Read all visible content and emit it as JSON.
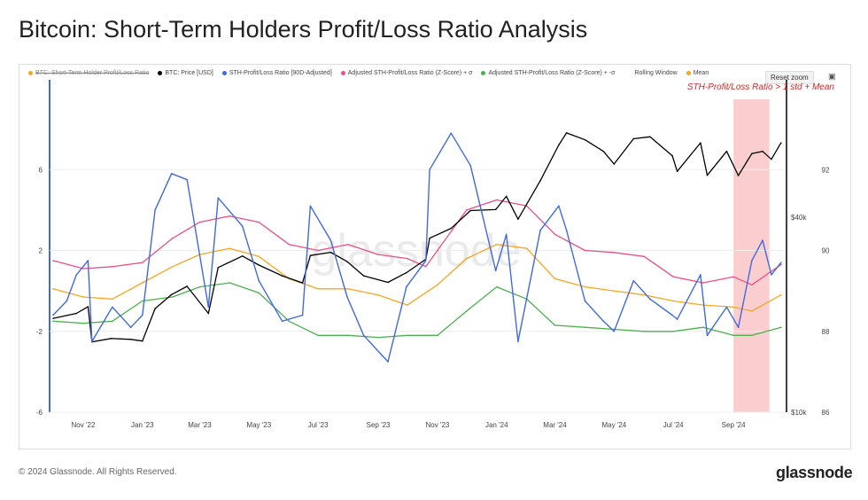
{
  "title": "Bitcoin: Short-Term Holders Profit/Loss Ratio Analysis",
  "footer": "© 2024 Glassnode. All Rights Reserved.",
  "brand": "glassnode",
  "watermark": "glassnode",
  "toolbar": {
    "reset_zoom": "Reset zoom",
    "camera_icon": "camera-icon"
  },
  "legend": [
    {
      "label": "BTC: Short-Term Holder Profit/Loss Ratio",
      "color": "#f5a623",
      "hidden": true
    },
    {
      "label": "BTC: Price [USD]",
      "color": "#000000",
      "hidden": false
    },
    {
      "label": "STH-Profit/Loss Ratio [90D-Adjusted]",
      "color": "#4169e1",
      "hidden": false
    },
    {
      "label": "Adjusted STH-Profit/Loss Ratio (Z-Score) + σ",
      "color": "#e8508a",
      "hidden": false
    },
    {
      "label": "Adjusted STH-Profit/Loss Ratio (Z-Score) + -σ",
      "color": "#4caf50",
      "hidden": false
    },
    {
      "label": "Rolling Window",
      "color": "",
      "hidden": false
    },
    {
      "label": "Mean",
      "color": "#f5a623",
      "hidden": false
    }
  ],
  "chart_data": {
    "type": "line",
    "annotation": "STH-Profit/Loss Ratio > 1 std + Mean",
    "x_tick_labels": [
      "Nov '22",
      "Jan '23",
      "Mar '23",
      "May '23",
      "Jul '23",
      "Sep '23",
      "Nov '23",
      "Jan '24",
      "Mar '24",
      "May '24",
      "Jul '24",
      "Sep '24"
    ],
    "x_range": [
      "2022-10-01",
      "2024-10-22"
    ],
    "y_left": {
      "ticks": [
        "-6",
        "-2",
        "2",
        "6"
      ],
      "range": [
        -6,
        10
      ]
    },
    "y_right_price": {
      "ticks": [
        "$10k",
        "$40k"
      ],
      "scale": "log",
      "range": [
        10000,
        100000
      ]
    },
    "y_right_ratio": {
      "ticks": [
        "86",
        "88",
        "90",
        "92"
      ],
      "range": [
        86,
        94
      ]
    },
    "highlight_region": {
      "from": "2024-09-01",
      "to": "2024-10-08",
      "color": "#f9c6c6"
    },
    "series": [
      {
        "name": "BTC: Price [USD]",
        "color": "#000000",
        "axis": "price",
        "points": [
          [
            "2022-10-01",
            19500
          ],
          [
            "2022-10-25",
            20200
          ],
          [
            "2022-11-06",
            21200
          ],
          [
            "2022-11-10",
            16500
          ],
          [
            "2022-11-30",
            16900
          ],
          [
            "2022-12-20",
            16800
          ],
          [
            "2023-01-01",
            16600
          ],
          [
            "2023-01-14",
            20900
          ],
          [
            "2023-01-31",
            23100
          ],
          [
            "2023-02-16",
            24500
          ],
          [
            "2023-03-10",
            20200
          ],
          [
            "2023-03-20",
            28000
          ],
          [
            "2023-04-14",
            30400
          ],
          [
            "2023-05-01",
            28500
          ],
          [
            "2023-05-25",
            26400
          ],
          [
            "2023-06-15",
            25100
          ],
          [
            "2023-06-23",
            30500
          ],
          [
            "2023-07-14",
            31200
          ],
          [
            "2023-07-31",
            29200
          ],
          [
            "2023-08-17",
            26400
          ],
          [
            "2023-09-11",
            25200
          ],
          [
            "2023-09-30",
            27000
          ],
          [
            "2023-10-20",
            29700
          ],
          [
            "2023-10-24",
            34500
          ],
          [
            "2023-11-15",
            37000
          ],
          [
            "2023-12-05",
            42000
          ],
          [
            "2023-12-31",
            42300
          ],
          [
            "2024-01-11",
            46500
          ],
          [
            "2024-01-23",
            39500
          ],
          [
            "2024-02-15",
            52000
          ],
          [
            "2024-03-05",
            67000
          ],
          [
            "2024-03-13",
            73000
          ],
          [
            "2024-04-01",
            69500
          ],
          [
            "2024-04-20",
            64000
          ],
          [
            "2024-05-01",
            58500
          ],
          [
            "2024-05-21",
            70000
          ],
          [
            "2024-06-07",
            71000
          ],
          [
            "2024-06-30",
            62000
          ],
          [
            "2024-07-05",
            55500
          ],
          [
            "2024-07-29",
            68000
          ],
          [
            "2024-08-05",
            54000
          ],
          [
            "2024-08-25",
            64000
          ],
          [
            "2024-09-06",
            53900
          ],
          [
            "2024-09-20",
            63000
          ],
          [
            "2024-10-01",
            64000
          ],
          [
            "2024-10-10",
            60500
          ],
          [
            "2024-10-20",
            68000
          ]
        ]
      },
      {
        "name": "STH-Profit/Loss Ratio [90D-Adjusted]",
        "color": "#4169e1",
        "axis": "left",
        "points": [
          [
            "2022-10-01",
            -1.2
          ],
          [
            "2022-10-15",
            -0.5
          ],
          [
            "2022-10-25",
            0.8
          ],
          [
            "2022-11-06",
            1.5
          ],
          [
            "2022-11-10",
            -2.5
          ],
          [
            "2022-12-01",
            -0.8
          ],
          [
            "2022-12-20",
            -1.8
          ],
          [
            "2023-01-01",
            -1.2
          ],
          [
            "2023-01-14",
            4.0
          ],
          [
            "2023-01-31",
            5.8
          ],
          [
            "2023-02-16",
            5.5
          ],
          [
            "2023-03-10",
            -0.8
          ],
          [
            "2023-03-20",
            4.6
          ],
          [
            "2023-04-14",
            3.2
          ],
          [
            "2023-05-01",
            0.5
          ],
          [
            "2023-05-25",
            -1.5
          ],
          [
            "2023-06-15",
            -1.2
          ],
          [
            "2023-06-23",
            4.2
          ],
          [
            "2023-07-14",
            2.5
          ],
          [
            "2023-07-31",
            -0.3
          ],
          [
            "2023-08-17",
            -2.2
          ],
          [
            "2023-09-11",
            -3.5
          ],
          [
            "2023-09-30",
            0.2
          ],
          [
            "2023-10-20",
            1.5
          ],
          [
            "2023-10-24",
            6.0
          ],
          [
            "2023-11-15",
            7.8
          ],
          [
            "2023-12-05",
            6.2
          ],
          [
            "2023-12-31",
            1.0
          ],
          [
            "2024-01-11",
            2.8
          ],
          [
            "2024-01-23",
            -2.5
          ],
          [
            "2024-02-15",
            3.0
          ],
          [
            "2024-03-05",
            4.2
          ],
          [
            "2024-03-13",
            3.0
          ],
          [
            "2024-04-01",
            -0.5
          ],
          [
            "2024-04-20",
            -1.5
          ],
          [
            "2024-05-01",
            -2.0
          ],
          [
            "2024-05-21",
            0.5
          ],
          [
            "2024-06-07",
            -0.4
          ],
          [
            "2024-06-30",
            -1.2
          ],
          [
            "2024-07-05",
            -1.4
          ],
          [
            "2024-07-29",
            0.8
          ],
          [
            "2024-08-05",
            -2.2
          ],
          [
            "2024-08-25",
            -0.8
          ],
          [
            "2024-09-06",
            -1.8
          ],
          [
            "2024-09-20",
            1.5
          ],
          [
            "2024-10-01",
            2.5
          ],
          [
            "2024-10-10",
            0.8
          ],
          [
            "2024-10-20",
            1.4
          ]
        ]
      },
      {
        "name": "Adjusted STH-Profit/Loss Ratio (Z-Score) + σ",
        "color": "#e8508a",
        "axis": "left",
        "points": [
          [
            "2022-10-01",
            1.5
          ],
          [
            "2022-11-01",
            1.1
          ],
          [
            "2022-12-01",
            1.2
          ],
          [
            "2023-01-01",
            1.4
          ],
          [
            "2023-02-01",
            2.6
          ],
          [
            "2023-03-01",
            3.4
          ],
          [
            "2023-04-01",
            3.7
          ],
          [
            "2023-05-01",
            3.4
          ],
          [
            "2023-06-01",
            2.3
          ],
          [
            "2023-07-01",
            2.0
          ],
          [
            "2023-08-01",
            2.3
          ],
          [
            "2023-09-01",
            1.8
          ],
          [
            "2023-10-01",
            1.6
          ],
          [
            "2023-10-20",
            1.2
          ],
          [
            "2023-11-01",
            2.0
          ],
          [
            "2023-12-01",
            4.0
          ],
          [
            "2024-01-01",
            4.5
          ],
          [
            "2024-02-01",
            4.2
          ],
          [
            "2024-03-01",
            2.8
          ],
          [
            "2024-04-01",
            2.0
          ],
          [
            "2024-05-01",
            1.9
          ],
          [
            "2024-06-01",
            1.7
          ],
          [
            "2024-07-01",
            0.7
          ],
          [
            "2024-08-01",
            0.4
          ],
          [
            "2024-09-01",
            0.7
          ],
          [
            "2024-09-20",
            0.3
          ],
          [
            "2024-10-20",
            1.3
          ]
        ]
      },
      {
        "name": "Adjusted STH-Profit/Loss Ratio (Z-Score) + -σ",
        "color": "#4caf50",
        "axis": "left",
        "points": [
          [
            "2022-10-01",
            -1.5
          ],
          [
            "2022-11-01",
            -1.6
          ],
          [
            "2022-12-01",
            -1.5
          ],
          [
            "2023-01-01",
            -0.5
          ],
          [
            "2023-02-01",
            -0.3
          ],
          [
            "2023-03-01",
            0.2
          ],
          [
            "2023-04-01",
            0.4
          ],
          [
            "2023-05-01",
            -0.1
          ],
          [
            "2023-06-01",
            -1.5
          ],
          [
            "2023-07-01",
            -2.2
          ],
          [
            "2023-08-01",
            -2.2
          ],
          [
            "2023-09-01",
            -2.3
          ],
          [
            "2023-10-01",
            -2.2
          ],
          [
            "2023-11-01",
            -2.2
          ],
          [
            "2023-12-01",
            -1.0
          ],
          [
            "2024-01-01",
            0.2
          ],
          [
            "2024-02-01",
            -0.4
          ],
          [
            "2024-03-01",
            -1.7
          ],
          [
            "2024-04-01",
            -1.8
          ],
          [
            "2024-05-01",
            -1.9
          ],
          [
            "2024-06-01",
            -2.0
          ],
          [
            "2024-07-01",
            -2.0
          ],
          [
            "2024-08-01",
            -1.8
          ],
          [
            "2024-09-01",
            -2.2
          ],
          [
            "2024-09-20",
            -2.2
          ],
          [
            "2024-10-20",
            -1.8
          ]
        ]
      },
      {
        "name": "Mean",
        "color": "#f5a623",
        "axis": "left",
        "points": [
          [
            "2022-10-01",
            0.1
          ],
          [
            "2022-11-01",
            -0.3
          ],
          [
            "2022-12-01",
            -0.4
          ],
          [
            "2023-01-01",
            0.4
          ],
          [
            "2023-02-01",
            1.2
          ],
          [
            "2023-03-01",
            1.8
          ],
          [
            "2023-04-01",
            2.1
          ],
          [
            "2023-05-01",
            1.7
          ],
          [
            "2023-06-01",
            0.6
          ],
          [
            "2023-07-01",
            0.1
          ],
          [
            "2023-08-01",
            0.1
          ],
          [
            "2023-09-01",
            -0.2
          ],
          [
            "2023-10-01",
            -0.7
          ],
          [
            "2023-11-01",
            0.3
          ],
          [
            "2023-12-01",
            1.6
          ],
          [
            "2024-01-01",
            2.3
          ],
          [
            "2024-02-01",
            2.1
          ],
          [
            "2024-03-01",
            0.6
          ],
          [
            "2024-04-01",
            0.2
          ],
          [
            "2024-05-01",
            0.0
          ],
          [
            "2024-06-01",
            -0.2
          ],
          [
            "2024-07-01",
            -0.5
          ],
          [
            "2024-08-01",
            -0.7
          ],
          [
            "2024-09-01",
            -0.8
          ],
          [
            "2024-09-20",
            -1.0
          ],
          [
            "2024-10-20",
            -0.2
          ]
        ]
      }
    ]
  }
}
